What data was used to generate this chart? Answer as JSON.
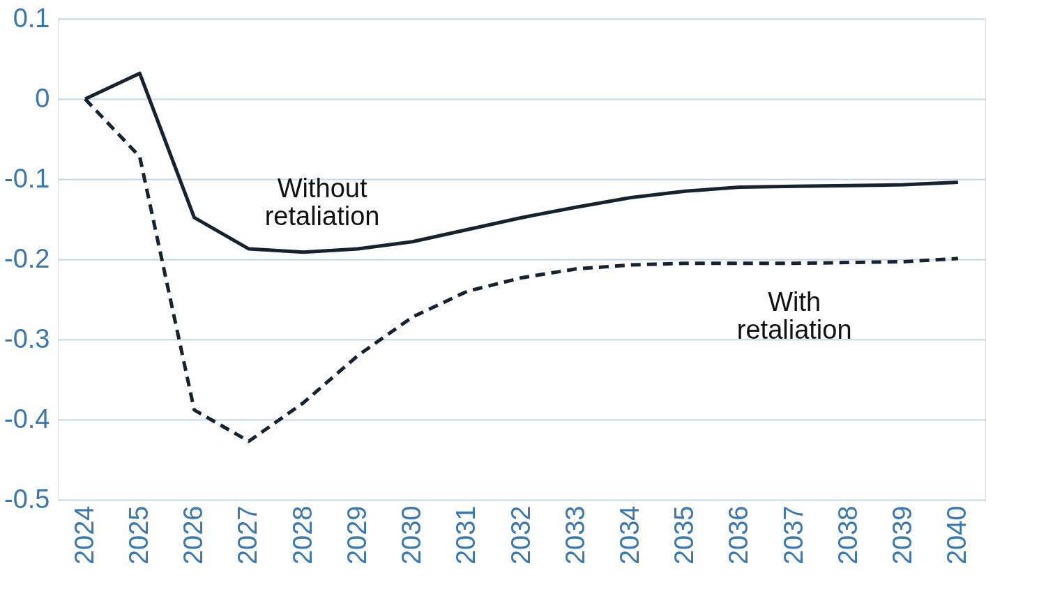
{
  "chart_data": {
    "type": "line",
    "categories": [
      "2024",
      "2025",
      "2026",
      "2027",
      "2028",
      "2029",
      "2030",
      "2031",
      "2032",
      "2033",
      "2034",
      "2035",
      "2036",
      "2037",
      "2038",
      "2039",
      "2040"
    ],
    "series": [
      {
        "name": "Without retaliation",
        "color": "#14232f",
        "line_style": "solid",
        "values": [
          0,
          0.032,
          -0.148,
          -0.187,
          -0.191,
          -0.187,
          -0.178,
          -0.163,
          -0.148,
          -0.135,
          -0.123,
          -0.115,
          -0.11,
          -0.109,
          -0.108,
          -0.107,
          -0.104
        ]
      },
      {
        "name": "With retaliation",
        "color": "#14232f",
        "line_style": "dashed",
        "values": [
          0,
          -0.072,
          -0.388,
          -0.427,
          -0.379,
          -0.32,
          -0.272,
          -0.24,
          -0.223,
          -0.212,
          -0.207,
          -0.205,
          -0.205,
          -0.205,
          -0.204,
          -0.203,
          -0.199
        ]
      }
    ],
    "ylim": [
      -0.5,
      0.1
    ],
    "yticks": [
      -0.5,
      -0.4,
      -0.3,
      -0.2,
      -0.1,
      0,
      0.1
    ],
    "grid": "y",
    "marker": "none"
  }
}
